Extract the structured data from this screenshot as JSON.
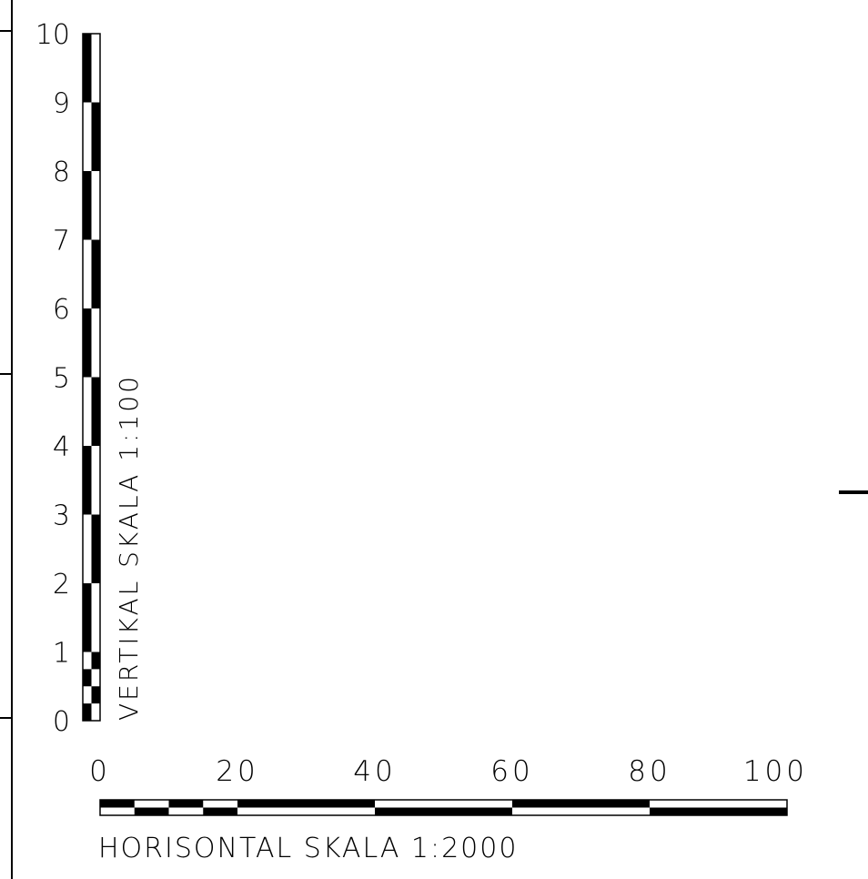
{
  "vertical_scale": {
    "label": "VERTIKAL SKALA 1:100",
    "unit_max": 10,
    "tick_labels": [
      "0",
      "1",
      "2",
      "3",
      "4",
      "5",
      "6",
      "7",
      "8",
      "9",
      "10"
    ],
    "fine_subdivisions_first_unit": 4
  },
  "horizontal_scale": {
    "label": "HORISONTAL SKALA 1:2000",
    "unit_max": 100,
    "tick_labels": [
      "0",
      "20",
      "40",
      "60",
      "80",
      "100"
    ],
    "tick_values": [
      0,
      20,
      40,
      60,
      80,
      100
    ],
    "fine_subdivision_step_first_segment": 5
  },
  "colors": {
    "ink": "#000000",
    "paper": "#ffffff"
  }
}
